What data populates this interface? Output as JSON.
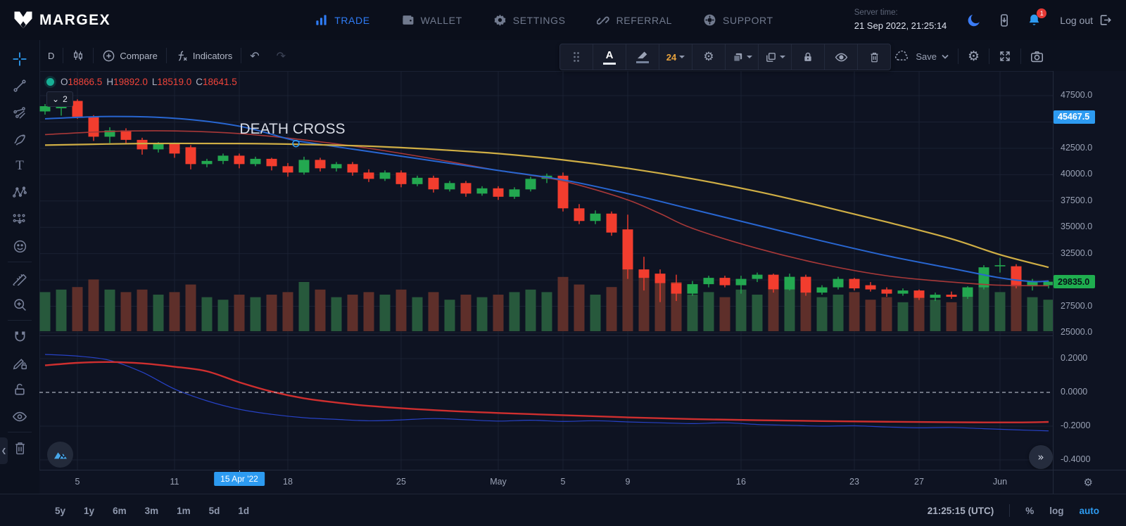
{
  "topnav": {
    "brand": "MARGEX",
    "items": [
      {
        "label": "TRADE",
        "active": true
      },
      {
        "label": "WALLET"
      },
      {
        "label": "SETTINGS"
      },
      {
        "label": "REFERRAL"
      },
      {
        "label": "SUPPORT"
      }
    ],
    "server_time_label": "Server time:",
    "server_time_value": "21 Sep 2022, 21:25:14",
    "notifications_count": "1",
    "logout_label": "Log out"
  },
  "chart_toolbar": {
    "interval": "D",
    "compare_label": "Compare",
    "indicators_label": "Indicators",
    "font_size": "24",
    "save_label": "Save"
  },
  "legend": {
    "o_key": "O",
    "o_val": "18866.5",
    "h_key": "H",
    "h_val": "19892.0",
    "l_key": "L",
    "l_val": "18519.0",
    "c_key": "C",
    "c_val": "18641.5",
    "collapse_count": "2"
  },
  "icons": {
    "collapse_chevron": "⌄",
    "undo": "↶",
    "redo": "↷",
    "gear": "⚙",
    "goto_end": "»",
    "panel_collapse": "❮"
  },
  "colors": {
    "accent": "#2d9bf1",
    "up": "#23a850",
    "down": "#f23d2e",
    "vol_up": "#27593c",
    "vol_down": "#5e2f2a",
    "ma_fast_red": "#a83838",
    "ma_mid_blue": "#2866d1",
    "ma_slow_yellow": "#cfae45",
    "ind_red": "#cf2f2f",
    "ind_blue": "#2742c6",
    "grid": "#1a2133",
    "tag_blue": "#2d9bf1",
    "tag_green": "#1fae4f"
  },
  "bottom_bar": {
    "ranges": [
      "5y",
      "1y",
      "6m",
      "3m",
      "1m",
      "5d",
      "1d"
    ],
    "clock": "21:25:15 (UTC)",
    "percent": "%",
    "log": "log",
    "auto": "auto"
  },
  "chart_data": {
    "type": "candlestick",
    "title": "BTC/USD daily with moving averages, volume and oscillator pane",
    "ylim": [
      25000,
      47500
    ],
    "grid_prices": [
      47500,
      45000,
      42500,
      40000,
      37500,
      35000,
      32500,
      30000,
      27500,
      25000
    ],
    "price_ticks": [
      {
        "label": "47500.0",
        "value": 47500
      },
      {
        "label": "45000.0",
        "value": 45000
      },
      {
        "label": "42500.0",
        "value": 42500
      },
      {
        "label": "40000.0",
        "value": 40000
      },
      {
        "label": "37500.0",
        "value": 37500
      },
      {
        "label": "35000.0",
        "value": 35000
      },
      {
        "label": "32500.0",
        "value": 32500
      },
      {
        "label": "27500.0",
        "value": 27500
      },
      {
        "label": "25000.0",
        "value": 25000
      }
    ],
    "lower_ylim": [
      -0.45,
      0.25
    ],
    "lower_ticks": [
      {
        "label": "0.2000",
        "value": 0.2
      },
      {
        "label": "0.0000",
        "value": 0.0
      },
      {
        "label": "-0.2000",
        "value": -0.2
      },
      {
        "label": "-0.4000",
        "value": -0.4
      }
    ],
    "lower_grid_values": [
      0.2,
      -0.2,
      -0.4
    ],
    "tags": {
      "upper": {
        "label": "45467.5",
        "value": 45467.5
      },
      "last": {
        "label": "29835.0",
        "value": 29835
      }
    },
    "annotation": {
      "text": "DEATH CROSS",
      "i": 15.5,
      "price": 42950,
      "circle_price": 42950
    },
    "time_ticks": [
      {
        "label": "5",
        "i": 2
      },
      {
        "label": "11",
        "i": 8
      },
      {
        "label": "15 Apr '22",
        "i": 12,
        "selected": true
      },
      {
        "label": "18",
        "i": 15
      },
      {
        "label": "25",
        "i": 22
      },
      {
        "label": "May",
        "i": 28
      },
      {
        "label": "5",
        "i": 32
      },
      {
        "label": "9",
        "i": 36
      },
      {
        "label": "16",
        "i": 43
      },
      {
        "label": "23",
        "i": 50
      },
      {
        "label": "27",
        "i": 54
      },
      {
        "label": "Jun",
        "i": 59
      }
    ],
    "candles": [
      [
        46000,
        46700,
        45700,
        46500,
        0.55
      ],
      [
        46300,
        47200,
        45600,
        46900,
        0.6
      ],
      [
        47000,
        47150,
        45300,
        45500,
        0.65
      ],
      [
        45500,
        45650,
        43200,
        43600,
        0.8
      ],
      [
        43600,
        44500,
        43000,
        44200,
        0.6
      ],
      [
        44200,
        44400,
        42900,
        43300,
        0.55
      ],
      [
        43300,
        43500,
        41900,
        42400,
        0.6
      ],
      [
        42400,
        43100,
        42100,
        42900,
        0.5
      ],
      [
        42900,
        43000,
        41600,
        42000,
        0.55
      ],
      [
        42600,
        42800,
        40500,
        41000,
        0.7
      ],
      [
        41000,
        41500,
        40700,
        41300,
        0.45
      ],
      [
        41300,
        42000,
        41000,
        41800,
        0.4
      ],
      [
        41800,
        42000,
        40600,
        41000,
        0.5
      ],
      [
        41000,
        41700,
        40800,
        41500,
        0.45
      ],
      [
        41500,
        41600,
        40400,
        40800,
        0.5
      ],
      [
        40800,
        41100,
        39800,
        40200,
        0.55
      ],
      [
        40200,
        41700,
        40000,
        41400,
        0.75
      ],
      [
        41400,
        41600,
        40300,
        40600,
        0.6
      ],
      [
        40600,
        41200,
        40300,
        41000,
        0.45
      ],
      [
        41000,
        41200,
        39900,
        40200,
        0.5
      ],
      [
        40200,
        40500,
        39300,
        39600,
        0.55
      ],
      [
        39600,
        40400,
        39400,
        40200,
        0.5
      ],
      [
        40200,
        40400,
        38800,
        39100,
        0.6
      ],
      [
        39100,
        39900,
        38900,
        39700,
        0.45
      ],
      [
        39700,
        39900,
        38300,
        38600,
        0.55
      ],
      [
        38600,
        39400,
        38400,
        39200,
        0.4
      ],
      [
        39200,
        39400,
        37900,
        38200,
        0.5
      ],
      [
        38200,
        38900,
        38000,
        38700,
        0.45
      ],
      [
        38700,
        38900,
        37600,
        37900,
        0.5
      ],
      [
        37900,
        38800,
        37700,
        38600,
        0.55
      ],
      [
        38600,
        39800,
        38400,
        39600,
        0.6
      ],
      [
        39600,
        40100,
        39200,
        39900,
        0.55
      ],
      [
        39900,
        40200,
        36500,
        36800,
        0.85
      ],
      [
        36800,
        37200,
        35300,
        35600,
        0.7
      ],
      [
        35600,
        36600,
        35300,
        36300,
        0.5
      ],
      [
        36300,
        36500,
        34200,
        34500,
        0.65
      ],
      [
        34800,
        36200,
        30100,
        31000,
        1.0
      ],
      [
        31000,
        32200,
        29000,
        30200,
        0.9
      ],
      [
        30600,
        31000,
        27900,
        29700,
        0.8
      ],
      [
        29700,
        30500,
        28000,
        28700,
        0.75
      ],
      [
        28700,
        29900,
        28500,
        29600,
        0.5
      ],
      [
        29600,
        30400,
        29300,
        30200,
        0.55
      ],
      [
        30200,
        30400,
        29300,
        29500,
        0.45
      ],
      [
        29500,
        30400,
        28700,
        30100,
        0.6
      ],
      [
        30100,
        30700,
        29800,
        30500,
        0.5
      ],
      [
        30500,
        30600,
        28800,
        29100,
        0.6
      ],
      [
        29100,
        30600,
        29000,
        30300,
        0.65
      ],
      [
        30300,
        30500,
        28500,
        28800,
        0.7
      ],
      [
        28800,
        29500,
        28600,
        29300,
        0.45
      ],
      [
        29300,
        30300,
        29100,
        30100,
        0.5
      ],
      [
        30100,
        30200,
        29000,
        29200,
        0.55
      ],
      [
        29500,
        29800,
        28900,
        29100,
        0.4
      ],
      [
        29100,
        29300,
        28400,
        28700,
        0.45
      ],
      [
        28700,
        29200,
        28500,
        29000,
        0.35
      ],
      [
        29000,
        29100,
        28100,
        28300,
        0.5
      ],
      [
        28300,
        28800,
        28000,
        28600,
        0.4
      ],
      [
        28600,
        28900,
        28200,
        28400,
        0.35
      ],
      [
        28400,
        29400,
        28200,
        29300,
        0.5
      ],
      [
        29300,
        31400,
        29100,
        31200,
        0.8
      ],
      [
        31300,
        32100,
        30700,
        31400,
        0.55
      ],
      [
        31300,
        31500,
        29200,
        29400,
        0.7
      ],
      [
        29400,
        30100,
        29000,
        29900,
        0.45
      ],
      [
        29500,
        29900,
        29200,
        29835,
        0.4
      ]
    ],
    "overlays": [
      {
        "name": "ma-fast-red",
        "points": [
          [
            0,
            43800
          ],
          [
            4,
            44100
          ],
          [
            8,
            44150
          ],
          [
            12,
            43900
          ],
          [
            16,
            43300
          ],
          [
            20,
            42500
          ],
          [
            24,
            41500
          ],
          [
            28,
            40400
          ],
          [
            31,
            39700
          ],
          [
            33,
            39000
          ],
          [
            36,
            37600
          ],
          [
            38,
            36300
          ],
          [
            40,
            34900
          ],
          [
            44,
            33000
          ],
          [
            48,
            31500
          ],
          [
            52,
            30400
          ],
          [
            56,
            29800
          ],
          [
            59,
            29500
          ],
          [
            62,
            29450
          ]
        ]
      },
      {
        "name": "ma-mid-blue",
        "points": [
          [
            0,
            45300
          ],
          [
            4,
            45520
          ],
          [
            8,
            45350
          ],
          [
            12,
            44600
          ],
          [
            15,
            43400
          ],
          [
            16,
            43100
          ],
          [
            20,
            42200
          ],
          [
            24,
            41300
          ],
          [
            28,
            40400
          ],
          [
            32,
            39500
          ],
          [
            36,
            38200
          ],
          [
            40,
            36700
          ],
          [
            44,
            35200
          ],
          [
            48,
            33700
          ],
          [
            52,
            32300
          ],
          [
            56,
            31100
          ],
          [
            59,
            30200
          ],
          [
            61,
            29850
          ],
          [
            62,
            29900
          ]
        ]
      },
      {
        "name": "ma-slow-yellow",
        "points": [
          [
            0,
            42800
          ],
          [
            6,
            42950
          ],
          [
            12,
            42950
          ],
          [
            16,
            42870
          ],
          [
            20,
            42700
          ],
          [
            24,
            42400
          ],
          [
            28,
            42000
          ],
          [
            32,
            41400
          ],
          [
            36,
            40600
          ],
          [
            40,
            39600
          ],
          [
            44,
            38400
          ],
          [
            48,
            37000
          ],
          [
            52,
            35500
          ],
          [
            56,
            33900
          ],
          [
            59,
            32400
          ],
          [
            62,
            31200
          ]
        ]
      }
    ],
    "lower_series": [
      {
        "name": "oscillator-blue",
        "points": [
          [
            0,
            0.225
          ],
          [
            2,
            0.215
          ],
          [
            4,
            0.19
          ],
          [
            6,
            0.12
          ],
          [
            8,
            0.02
          ],
          [
            10,
            -0.05
          ],
          [
            12,
            -0.1
          ],
          [
            14,
            -0.13
          ],
          [
            16,
            -0.15
          ],
          [
            18,
            -0.16
          ],
          [
            20,
            -0.168
          ],
          [
            22,
            -0.163
          ],
          [
            24,
            -0.155
          ],
          [
            26,
            -0.162
          ],
          [
            28,
            -0.17
          ],
          [
            30,
            -0.165
          ],
          [
            32,
            -0.172
          ],
          [
            34,
            -0.168
          ],
          [
            36,
            -0.175
          ],
          [
            38,
            -0.18
          ],
          [
            40,
            -0.185
          ],
          [
            42,
            -0.18
          ],
          [
            44,
            -0.19
          ],
          [
            46,
            -0.195
          ],
          [
            48,
            -0.2
          ],
          [
            50,
            -0.198
          ],
          [
            52,
            -0.205
          ],
          [
            54,
            -0.21
          ],
          [
            56,
            -0.208
          ],
          [
            58,
            -0.215
          ],
          [
            60,
            -0.222
          ],
          [
            62,
            -0.228
          ]
        ]
      },
      {
        "name": "oscillator-red",
        "points": [
          [
            0,
            0.16
          ],
          [
            2,
            0.175
          ],
          [
            4,
            0.18
          ],
          [
            6,
            0.172
          ],
          [
            8,
            0.152
          ],
          [
            10,
            0.125
          ],
          [
            12,
            0.06
          ],
          [
            14,
            0.005
          ],
          [
            16,
            -0.035
          ],
          [
            18,
            -0.06
          ],
          [
            20,
            -0.08
          ],
          [
            24,
            -0.105
          ],
          [
            28,
            -0.122
          ],
          [
            32,
            -0.135
          ],
          [
            36,
            -0.148
          ],
          [
            40,
            -0.158
          ],
          [
            44,
            -0.165
          ],
          [
            48,
            -0.17
          ],
          [
            52,
            -0.174
          ],
          [
            56,
            -0.177
          ],
          [
            60,
            -0.178
          ],
          [
            62,
            -0.175
          ]
        ]
      }
    ]
  }
}
